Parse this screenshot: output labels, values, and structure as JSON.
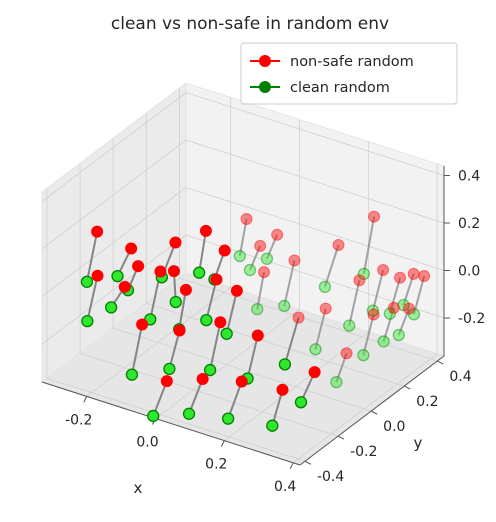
{
  "chart_data": {
    "type": "scatter",
    "projection": "3d",
    "title": "clean vs non-safe in random env",
    "xlabel": "x",
    "ylabel": "y",
    "zlabel": "",
    "xlim": [
      -0.33,
      0.42
    ],
    "ylim": [
      -0.43,
      0.44
    ],
    "zlim": [
      -0.36,
      0.44
    ],
    "x_ticks": [
      "-0.2",
      "0.0",
      "0.2",
      "0.4"
    ],
    "y_ticks": [
      "-0.4",
      "-0.2",
      "0.0",
      "0.2",
      "0.4"
    ],
    "z_ticks": [
      "-0.2",
      "0.0",
      "0.2",
      "0.4"
    ],
    "grid": true,
    "legend_position": "top-right",
    "connector_color": "#808080",
    "series": [
      {
        "name": "non-safe random",
        "color": "#ff0000",
        "points": [
          [
            -0.29,
            -0.18,
            0.16
          ],
          [
            -0.22,
            -0.12,
            0.09
          ],
          [
            -0.19,
            -0.14,
            0.04
          ],
          [
            -0.12,
            -0.06,
            0.13
          ],
          [
            -0.11,
            -0.09,
            0.03
          ],
          [
            -0.07,
            0.02,
            0.16
          ],
          [
            -0.03,
            0.05,
            0.08
          ],
          [
            0.0,
            0.12,
            0.19
          ],
          [
            0.03,
            0.14,
            0.08
          ],
          [
            0.06,
            0.18,
            0.12
          ],
          [
            -0.26,
            -0.24,
            0.02
          ],
          [
            -0.2,
            -0.2,
            -0.02
          ],
          [
            -0.13,
            -0.13,
            0.04
          ],
          [
            -0.08,
            -0.08,
            -0.04
          ],
          [
            -0.02,
            -0.02,
            0.0
          ],
          [
            0.02,
            0.02,
            -0.05
          ],
          [
            0.07,
            0.08,
            0.02
          ],
          [
            0.12,
            0.16,
            0.05
          ],
          [
            0.2,
            0.26,
            0.1
          ],
          [
            0.26,
            0.35,
            0.2
          ],
          [
            -0.14,
            -0.22,
            -0.14
          ],
          [
            -0.06,
            -0.16,
            -0.16
          ],
          [
            0.02,
            -0.08,
            -0.13
          ],
          [
            0.1,
            -0.02,
            -0.18
          ],
          [
            0.18,
            0.06,
            -0.11
          ],
          [
            0.23,
            0.12,
            -0.08
          ],
          [
            0.28,
            0.22,
            0.01
          ],
          [
            0.32,
            0.28,
            0.04
          ],
          [
            0.35,
            0.32,
            0.0
          ],
          [
            0.38,
            0.34,
            0.02
          ],
          [
            -0.02,
            -0.32,
            -0.27
          ],
          [
            0.06,
            -0.27,
            -0.25
          ],
          [
            0.14,
            -0.2,
            -0.26
          ],
          [
            0.22,
            -0.12,
            -0.3
          ],
          [
            0.27,
            -0.03,
            -0.25
          ],
          [
            0.31,
            0.08,
            -0.21
          ],
          [
            0.35,
            0.16,
            -0.07
          ],
          [
            0.38,
            0.22,
            -0.06
          ],
          [
            0.4,
            0.27,
            -0.08
          ],
          [
            0.42,
            0.32,
            0.04
          ]
        ]
      },
      {
        "name": "clean random",
        "color": "#008000",
        "points": [
          [
            -0.31,
            -0.2,
            -0.05
          ],
          [
            -0.25,
            -0.14,
            -0.03
          ],
          [
            -0.21,
            -0.16,
            -0.06
          ],
          [
            -0.15,
            -0.08,
            -0.02
          ],
          [
            -0.1,
            -0.1,
            -0.09
          ],
          [
            -0.08,
            0.0,
            -0.01
          ],
          [
            -0.05,
            0.03,
            -0.04
          ],
          [
            -0.01,
            0.1,
            0.04
          ],
          [
            0.01,
            0.12,
            -0.02
          ],
          [
            0.04,
            0.16,
            0.02
          ],
          [
            -0.28,
            -0.26,
            -0.17
          ],
          [
            -0.23,
            -0.22,
            -0.11
          ],
          [
            -0.15,
            -0.15,
            -0.16
          ],
          [
            -0.09,
            -0.1,
            -0.2
          ],
          [
            -0.04,
            -0.04,
            -0.17
          ],
          [
            0.0,
            0.0,
            -0.23
          ],
          [
            0.06,
            0.06,
            -0.13
          ],
          [
            0.1,
            0.14,
            -0.14
          ],
          [
            0.17,
            0.24,
            -0.08
          ],
          [
            0.24,
            0.33,
            -0.04
          ],
          [
            -0.16,
            -0.24,
            -0.35
          ],
          [
            -0.08,
            -0.18,
            -0.32
          ],
          [
            0.0,
            -0.1,
            -0.33
          ],
          [
            0.08,
            -0.04,
            -0.36
          ],
          [
            0.15,
            0.04,
            -0.31
          ],
          [
            0.21,
            0.1,
            -0.25
          ],
          [
            0.26,
            0.2,
            -0.18
          ],
          [
            0.3,
            0.26,
            -0.13
          ],
          [
            0.33,
            0.3,
            -0.15
          ],
          [
            0.36,
            0.32,
            -0.11
          ],
          [
            -0.05,
            -0.34,
            -0.42
          ],
          [
            0.03,
            -0.29,
            -0.4
          ],
          [
            0.11,
            -0.22,
            -0.42
          ],
          [
            0.2,
            -0.14,
            -0.45
          ],
          [
            0.24,
            -0.05,
            -0.38
          ],
          [
            0.29,
            0.06,
            -0.33
          ],
          [
            0.33,
            0.14,
            -0.24
          ],
          [
            0.36,
            0.2,
            -0.2
          ],
          [
            0.38,
            0.25,
            -0.19
          ],
          [
            0.4,
            0.3,
            -0.12
          ]
        ]
      }
    ]
  }
}
